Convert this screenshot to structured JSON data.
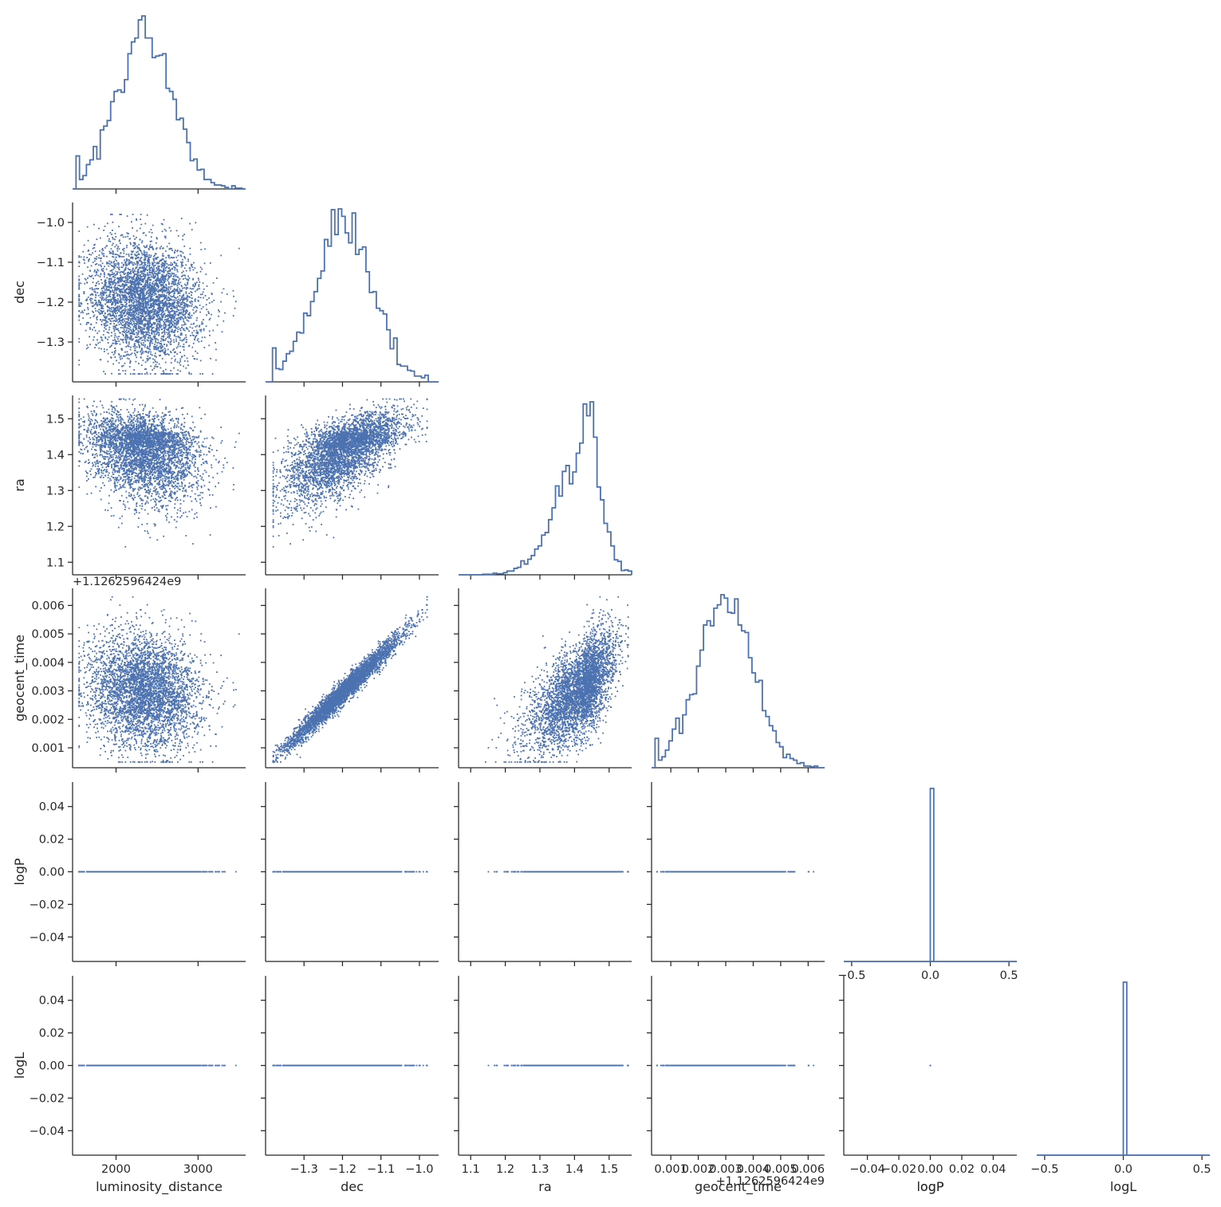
{
  "chart_data": {
    "type": "scatter",
    "title": "",
    "variables": [
      {
        "name": "luminosity_distance",
        "label": "luminosity_distance",
        "range": [
          1470,
          3580
        ],
        "ticks": [
          2000,
          3000
        ],
        "tick_labels": [
          "2000",
          "3000"
        ],
        "offset_text": "",
        "hist_max": 0.0013,
        "density": {
          "kind": "normal",
          "mean": 2350,
          "sd": 340,
          "min": 1550,
          "max": 3500
        }
      },
      {
        "name": "dec",
        "label": "dec",
        "range": [
          -1.4,
          -0.95
        ],
        "ticks": [
          -1.3,
          -1.2,
          -1.1,
          -1.0
        ],
        "tick_labels": [
          "−1.3",
          "−1.2",
          "−1.1",
          "−1.0"
        ],
        "offset_text": "",
        "hist_max": 5.3,
        "density": {
          "kind": "normal",
          "mean": -1.195,
          "sd": 0.075,
          "min": -1.38,
          "max": -0.98
        }
      },
      {
        "name": "ra",
        "label": "ra",
        "range": [
          1.065,
          1.565
        ],
        "ticks": [
          1.1,
          1.2,
          1.3,
          1.4,
          1.5
        ],
        "tick_labels": [
          "1.1",
          "1.2",
          "1.3",
          "1.4",
          "1.5"
        ],
        "offset_text": "",
        "hist_max": 6.2,
        "density": {
          "kind": "skew",
          "mode": 1.42,
          "sd_left": 0.075,
          "sd_right": 0.045,
          "min": 1.08,
          "max": 1.555
        }
      },
      {
        "name": "geocent_time",
        "label": "geocent_time",
        "range": [
          0.0003,
          0.0066
        ],
        "ticks": [
          0.001,
          0.002,
          0.003,
          0.004,
          0.005,
          0.006
        ],
        "tick_labels": [
          "0.001",
          "0.002",
          "0.003",
          "0.004",
          "0.005",
          "0.006"
        ],
        "offset_text": "+1.1262596424e9",
        "hist_max": 360,
        "density": {
          "kind": "normal",
          "mean": 0.003,
          "sd": 0.001,
          "min": 0.0005,
          "max": 0.0063
        }
      },
      {
        "name": "logP",
        "label": "logP",
        "range": [
          -0.055,
          0.055
        ],
        "ticks": [
          -0.04,
          -0.02,
          0.0,
          0.02,
          0.04
        ],
        "tick_labels": [
          "−0.04",
          "−0.02",
          "0.00",
          "0.02",
          "0.04"
        ],
        "hist_range": [
          -0.55,
          0.55
        ],
        "hist_ticks": [
          -0.5,
          0.0,
          0.5
        ],
        "hist_tick_labels": [
          "−0.5",
          "0.0",
          "0.5"
        ],
        "offset_text": "",
        "density": {
          "kind": "constant",
          "value": 0.0
        }
      },
      {
        "name": "logL",
        "label": "logL",
        "range": [
          -0.055,
          0.055
        ],
        "ticks": [
          -0.04,
          -0.02,
          0.0,
          0.02,
          0.04
        ],
        "tick_labels": [
          "−0.04",
          "−0.02",
          "0.00",
          "0.02",
          "0.04"
        ],
        "hist_range": [
          -0.55,
          0.55
        ],
        "hist_ticks": [
          -0.5,
          0.0,
          0.5
        ],
        "hist_tick_labels": [
          "−0.5",
          "0.0",
          "0.5"
        ],
        "offset_text": "",
        "density": {
          "kind": "constant",
          "value": 0.0
        }
      }
    ],
    "correlations": {
      "dec|ra": 0.62,
      "dec|geocent_time": 0.98,
      "ra|geocent_time": 0.62,
      "luminosity_distance|dec": -0.12,
      "luminosity_distance|ra": -0.18,
      "luminosity_distance|geocent_time": -0.15
    },
    "sample_count": 4000,
    "diagonal": "step-histogram",
    "off_diagonal": "scatter",
    "corner": true,
    "grid": false,
    "color": "#4c72b0"
  }
}
